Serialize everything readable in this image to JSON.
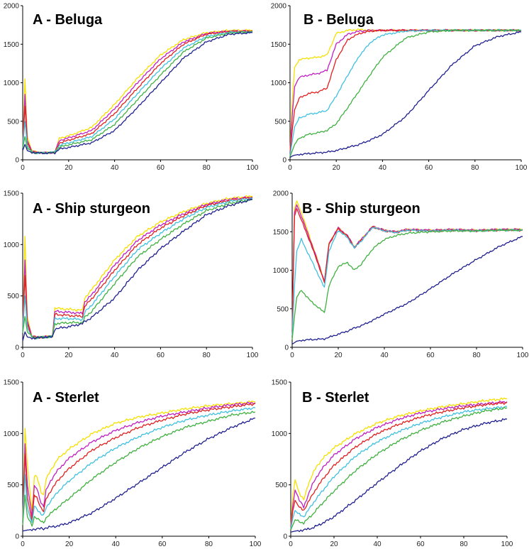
{
  "chart_data": [
    {
      "type": "line",
      "panel": "A",
      "fish": "Beluga",
      "title": "A - Beluga",
      "xlim": [
        0,
        100
      ],
      "ylim": [
        0,
        2000
      ],
      "xticks": [
        0,
        20,
        40,
        60,
        80,
        100
      ],
      "yticks": [
        0,
        500,
        1000,
        1500,
        2000
      ],
      "x": [
        0,
        1,
        2,
        4,
        6,
        10,
        14,
        16,
        20,
        30,
        40,
        50,
        60,
        70,
        80,
        90,
        100
      ],
      "series": [
        {
          "name": "yellow",
          "color": "#f5e000",
          "values": [
            200,
            1050,
            300,
            120,
            100,
            90,
            100,
            280,
            310,
            420,
            720,
            1060,
            1360,
            1560,
            1650,
            1680,
            1680
          ]
        },
        {
          "name": "magenta",
          "color": "#c020c0",
          "values": [
            180,
            850,
            250,
            110,
            95,
            90,
            100,
            250,
            285,
            380,
            660,
            1000,
            1310,
            1530,
            1640,
            1670,
            1670
          ]
        },
        {
          "name": "red",
          "color": "#e02020",
          "values": [
            170,
            700,
            220,
            105,
            95,
            90,
            100,
            220,
            255,
            340,
            600,
            930,
            1250,
            1500,
            1630,
            1665,
            1670
          ]
        },
        {
          "name": "cyan",
          "color": "#40c0e0",
          "values": [
            160,
            500,
            180,
            100,
            92,
            90,
            100,
            190,
            220,
            300,
            530,
            860,
            1180,
            1450,
            1600,
            1655,
            1660
          ]
        },
        {
          "name": "green",
          "color": "#40b040",
          "values": [
            150,
            300,
            150,
            100,
            90,
            88,
            95,
            165,
            195,
            260,
            460,
            780,
            1100,
            1400,
            1580,
            1645,
            1660
          ]
        },
        {
          "name": "blue",
          "color": "#202090",
          "values": [
            120,
            200,
            120,
            95,
            90,
            85,
            90,
            140,
            160,
            220,
            380,
            680,
            1000,
            1320,
            1530,
            1630,
            1650
          ]
        }
      ]
    },
    {
      "type": "line",
      "panel": "B",
      "fish": "Beluga",
      "title": "B - Beluga",
      "xlim": [
        0,
        100
      ],
      "ylim": [
        0,
        2000
      ],
      "xticks": [
        0,
        20,
        40,
        60,
        80,
        100
      ],
      "yticks": [
        0,
        500,
        1000,
        1500,
        2000
      ],
      "x": [
        0,
        1,
        2,
        4,
        8,
        12,
        16,
        20,
        25,
        30,
        35,
        40,
        50,
        60,
        70,
        80,
        90,
        100
      ],
      "series": [
        {
          "name": "yellow",
          "color": "#f5e000",
          "values": [
            100,
            800,
            1200,
            1300,
            1320,
            1330,
            1360,
            1640,
            1680,
            1690,
            1680,
            1680,
            1680,
            1680,
            1680,
            1680,
            1680,
            1680
          ]
        },
        {
          "name": "magenta",
          "color": "#c020c0",
          "values": [
            80,
            600,
            950,
            1070,
            1100,
            1120,
            1160,
            1500,
            1630,
            1670,
            1680,
            1680,
            1680,
            1680,
            1680,
            1680,
            1680,
            1680
          ]
        },
        {
          "name": "red",
          "color": "#e02020",
          "values": [
            60,
            400,
            650,
            800,
            860,
            880,
            930,
            1300,
            1560,
            1640,
            1670,
            1680,
            1680,
            1680,
            1680,
            1680,
            1680,
            1680
          ]
        },
        {
          "name": "cyan",
          "color": "#40c0e0",
          "values": [
            50,
            250,
            430,
            540,
            590,
            610,
            640,
            830,
            1100,
            1350,
            1530,
            1620,
            1670,
            1680,
            1680,
            1680,
            1680,
            1680
          ]
        },
        {
          "name": "green",
          "color": "#40b040",
          "values": [
            40,
            120,
            200,
            280,
            330,
            350,
            380,
            470,
            680,
            900,
            1120,
            1330,
            1580,
            1660,
            1680,
            1680,
            1680,
            1680
          ]
        },
        {
          "name": "blue",
          "color": "#202090",
          "values": [
            30,
            50,
            60,
            70,
            80,
            90,
            100,
            120,
            160,
            200,
            260,
            330,
            560,
            900,
            1230,
            1480,
            1600,
            1660
          ]
        }
      ]
    },
    {
      "type": "line",
      "panel": "A",
      "fish": "Ship sturgeon",
      "title": "A - Ship sturgeon",
      "xlim": [
        0,
        100
      ],
      "ylim": [
        0,
        1500
      ],
      "xticks": [
        0,
        20,
        40,
        60,
        80,
        100
      ],
      "yticks": [
        0,
        500,
        1000,
        1500
      ],
      "x": [
        0,
        1,
        2,
        4,
        6,
        10,
        13,
        14,
        20,
        26,
        27,
        30,
        40,
        50,
        60,
        70,
        80,
        90,
        100
      ],
      "series": [
        {
          "name": "yellow",
          "color": "#f5e000",
          "values": [
            200,
            1080,
            300,
            110,
            100,
            100,
            110,
            380,
            370,
            360,
            480,
            560,
            850,
            1080,
            1220,
            1320,
            1400,
            1450,
            1470
          ]
        },
        {
          "name": "magenta",
          "color": "#c020c0",
          "values": [
            180,
            850,
            260,
            105,
            100,
            100,
            110,
            350,
            340,
            330,
            440,
            510,
            800,
            1040,
            1190,
            1300,
            1390,
            1440,
            1460
          ]
        },
        {
          "name": "red",
          "color": "#e02020",
          "values": [
            160,
            700,
            230,
            100,
            95,
            100,
            110,
            320,
            310,
            300,
            400,
            470,
            750,
            1000,
            1160,
            1280,
            1380,
            1430,
            1460
          ]
        },
        {
          "name": "cyan",
          "color": "#40c0e0",
          "values": [
            150,
            500,
            190,
            100,
            95,
            100,
            105,
            280,
            280,
            270,
            340,
            410,
            690,
            950,
            1110,
            1250,
            1360,
            1420,
            1450
          ]
        },
        {
          "name": "green",
          "color": "#40b040",
          "values": [
            140,
            300,
            150,
            100,
            95,
            100,
            105,
            230,
            240,
            240,
            290,
            350,
            620,
            880,
            1050,
            1200,
            1330,
            1400,
            1440
          ]
        },
        {
          "name": "blue",
          "color": "#202090",
          "values": [
            60,
            150,
            100,
            90,
            90,
            100,
            100,
            180,
            200,
            230,
            250,
            290,
            480,
            750,
            960,
            1130,
            1290,
            1380,
            1440
          ]
        }
      ]
    },
    {
      "type": "line",
      "panel": "B",
      "fish": "Ship sturgeon",
      "title": "B - Ship sturgeon",
      "xlim": [
        0,
        100
      ],
      "ylim": [
        0,
        2000
      ],
      "xticks": [
        0,
        20,
        40,
        60,
        80,
        100
      ],
      "yticks": [
        0,
        500,
        1000,
        1500,
        2000
      ],
      "x": [
        0,
        1,
        2,
        4,
        8,
        12,
        14,
        16,
        20,
        24,
        27,
        30,
        35,
        40,
        45,
        50,
        60,
        70,
        80,
        90,
        100
      ],
      "series": [
        {
          "name": "yellow",
          "color": "#f5e000",
          "values": [
            200,
            1800,
            1900,
            1750,
            1400,
            1050,
            850,
            1350,
            1550,
            1450,
            1300,
            1400,
            1570,
            1520,
            1500,
            1530,
            1520,
            1530,
            1520,
            1530,
            1530
          ]
        },
        {
          "name": "magenta",
          "color": "#c020c0",
          "values": [
            200,
            1750,
            1850,
            1700,
            1380,
            1040,
            850,
            1350,
            1550,
            1450,
            1300,
            1400,
            1570,
            1520,
            1500,
            1530,
            1520,
            1530,
            1520,
            1530,
            1530
          ]
        },
        {
          "name": "red",
          "color": "#e02020",
          "values": [
            180,
            1700,
            1800,
            1650,
            1350,
            1020,
            840,
            1340,
            1540,
            1440,
            1290,
            1390,
            1560,
            1510,
            1490,
            1520,
            1510,
            1520,
            1510,
            1520,
            1520
          ]
        },
        {
          "name": "cyan",
          "color": "#40c0e0",
          "values": [
            150,
            800,
            1250,
            1400,
            1150,
            900,
            770,
            1250,
            1520,
            1420,
            1290,
            1380,
            1560,
            1510,
            1490,
            1520,
            1510,
            1520,
            1510,
            1520,
            1520
          ]
        },
        {
          "name": "green",
          "color": "#40b040",
          "values": [
            100,
            400,
            650,
            740,
            600,
            500,
            450,
            800,
            1050,
            1100,
            1000,
            1080,
            1280,
            1400,
            1450,
            1480,
            1500,
            1510,
            1510,
            1520,
            1520
          ]
        },
        {
          "name": "blue",
          "color": "#202090",
          "values": [
            40,
            60,
            80,
            90,
            100,
            105,
            110,
            130,
            170,
            210,
            250,
            280,
            350,
            430,
            500,
            570,
            760,
            960,
            1140,
            1310,
            1440
          ]
        }
      ]
    },
    {
      "type": "line",
      "panel": "A",
      "fish": "Sterlet",
      "title": "A - Sterlet",
      "xlim": [
        0,
        100
      ],
      "ylim": [
        0,
        1500
      ],
      "xticks": [
        0,
        20,
        40,
        60,
        80,
        100
      ],
      "yticks": [
        0,
        500,
        1000,
        1500
      ],
      "x": [
        0,
        1,
        2,
        4,
        5,
        6,
        8,
        9,
        10,
        12,
        15,
        20,
        30,
        40,
        50,
        60,
        70,
        80,
        90,
        100
      ],
      "series": [
        {
          "name": "yellow",
          "color": "#f5e000",
          "values": [
            150,
            1050,
            700,
            250,
            580,
            580,
            430,
            400,
            550,
            640,
            750,
            850,
            1000,
            1100,
            1160,
            1200,
            1240,
            1270,
            1290,
            1310
          ]
        },
        {
          "name": "magenta",
          "color": "#c020c0",
          "values": [
            140,
            900,
            500,
            200,
            480,
            470,
            320,
            290,
            440,
            540,
            640,
            760,
            920,
            1030,
            1110,
            1170,
            1210,
            1250,
            1280,
            1300
          ]
        },
        {
          "name": "red",
          "color": "#e02020",
          "values": [
            130,
            800,
            380,
            150,
            400,
            380,
            270,
            240,
            360,
            440,
            540,
            660,
            840,
            960,
            1060,
            1130,
            1190,
            1230,
            1260,
            1290
          ]
        },
        {
          "name": "cyan",
          "color": "#40c0e0",
          "values": [
            120,
            600,
            280,
            120,
            300,
            270,
            210,
            200,
            280,
            340,
            430,
            540,
            720,
            860,
            970,
            1060,
            1130,
            1180,
            1220,
            1250
          ]
        },
        {
          "name": "green",
          "color": "#40b040",
          "values": [
            110,
            400,
            190,
            100,
            190,
            180,
            140,
            130,
            180,
            220,
            280,
            370,
            560,
            720,
            860,
            970,
            1060,
            1120,
            1180,
            1210
          ]
        },
        {
          "name": "blue",
          "color": "#202090",
          "values": [
            50,
            55,
            60,
            65,
            70,
            70,
            75,
            75,
            80,
            90,
            100,
            130,
            230,
            370,
            520,
            670,
            820,
            950,
            1060,
            1150
          ]
        }
      ]
    },
    {
      "type": "line",
      "panel": "B",
      "fish": "Sterlet",
      "title": "B - Sterlet",
      "xlim": [
        0,
        100
      ],
      "ylim": [
        0,
        1500
      ],
      "xticks": [
        0,
        20,
        40,
        60,
        80,
        100
      ],
      "yticks": [
        0,
        500,
        1000,
        1500
      ],
      "x": [
        0,
        1,
        2,
        4,
        6,
        8,
        10,
        12,
        15,
        20,
        30,
        40,
        50,
        60,
        70,
        80,
        90,
        100
      ],
      "series": [
        {
          "name": "yellow",
          "color": "#f5e000",
          "values": [
            100,
            400,
            550,
            420,
            350,
            500,
            600,
            680,
            760,
            860,
            1000,
            1100,
            1170,
            1220,
            1260,
            1290,
            1320,
            1340
          ]
        },
        {
          "name": "magenta",
          "color": "#c020c0",
          "values": [
            90,
            300,
            450,
            350,
            280,
            400,
            500,
            580,
            670,
            790,
            950,
            1060,
            1140,
            1200,
            1240,
            1270,
            1290,
            1310
          ]
        },
        {
          "name": "red",
          "color": "#e02020",
          "values": [
            80,
            250,
            350,
            280,
            250,
            330,
            400,
            470,
            560,
            690,
            870,
            1000,
            1090,
            1160,
            1210,
            1250,
            1280,
            1300
          ]
        },
        {
          "name": "cyan",
          "color": "#40c0e0",
          "values": [
            70,
            180,
            250,
            210,
            190,
            250,
            310,
            370,
            450,
            580,
            780,
            920,
            1020,
            1100,
            1160,
            1210,
            1240,
            1260
          ]
        },
        {
          "name": "green",
          "color": "#40b040",
          "values": [
            60,
            110,
            160,
            140,
            130,
            170,
            210,
            260,
            330,
            440,
            640,
            800,
            930,
            1030,
            1110,
            1170,
            1220,
            1250
          ]
        },
        {
          "name": "blue",
          "color": "#202090",
          "values": [
            40,
            45,
            50,
            55,
            60,
            70,
            80,
            100,
            130,
            190,
            350,
            520,
            680,
            830,
            950,
            1040,
            1100,
            1140
          ]
        }
      ]
    }
  ]
}
